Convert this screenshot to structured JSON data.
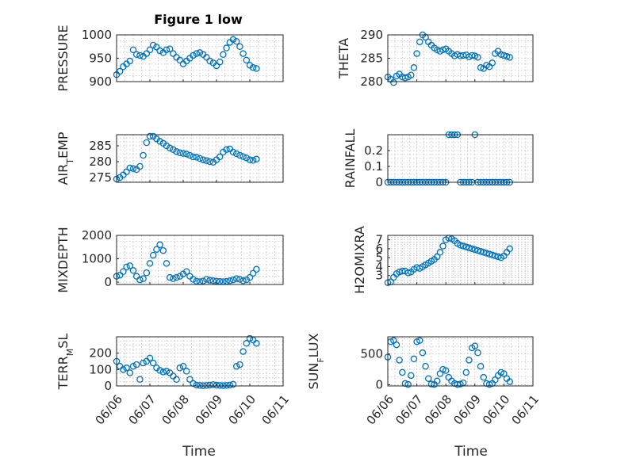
{
  "figure_title": "Figure 1 low",
  "xlabel": "Time",
  "colors": {
    "marker": "#0072BD",
    "axis": "#262626",
    "grid": "#bfbfbf"
  },
  "chart_data": [
    {
      "type": "scatter",
      "name": "pressure",
      "ylabel": "PRESSURE",
      "title": "Figure 1 low",
      "ylim": [
        900,
        1000
      ],
      "yticks": [
        900,
        950,
        1000
      ],
      "yticklabels": [
        "900",
        "950",
        "1000"
      ],
      "xlim": [
        "06/06",
        "06/11"
      ],
      "xticks": [],
      "xticklabels": [],
      "grid": true,
      "marker": "o",
      "x": [
        0.0,
        0.1,
        0.2,
        0.3,
        0.4,
        0.5,
        0.6,
        0.7,
        0.8,
        0.9,
        1.0,
        1.1,
        1.2,
        1.3,
        1.4,
        1.5,
        1.6,
        1.7,
        1.8,
        1.9,
        2.0,
        2.1,
        2.2,
        2.3,
        2.4,
        2.5,
        2.6,
        2.7,
        2.8,
        2.9,
        3.0,
        3.1,
        3.2,
        3.3,
        3.4,
        3.5,
        3.6,
        3.7,
        3.8,
        3.9,
        4.0,
        4.1,
        4.2
      ],
      "y": [
        915,
        922,
        932,
        938,
        944,
        968,
        958,
        956,
        954,
        960,
        968,
        978,
        974,
        966,
        962,
        968,
        970,
        960,
        952,
        946,
        938,
        944,
        950,
        956,
        960,
        962,
        958,
        952,
        944,
        940,
        934,
        942,
        958,
        972,
        984,
        990,
        986,
        975,
        960,
        946,
        935,
        930,
        928
      ]
    },
    {
      "type": "scatter",
      "name": "theta",
      "ylabel": "THETA",
      "ylim": [
        280,
        290
      ],
      "yticks": [
        280,
        285,
        290
      ],
      "yticklabels": [
        "280",
        "285",
        "290"
      ],
      "xlim": [
        "06/06",
        "06/11"
      ],
      "xticks": [],
      "xticklabels": [],
      "grid": true,
      "marker": "o",
      "x": [
        0.0,
        0.1,
        0.2,
        0.3,
        0.4,
        0.5,
        0.6,
        0.7,
        0.8,
        0.9,
        1.0,
        1.1,
        1.2,
        1.3,
        1.4,
        1.5,
        1.6,
        1.7,
        1.8,
        1.9,
        2.0,
        2.1,
        2.2,
        2.3,
        2.4,
        2.5,
        2.6,
        2.7,
        2.8,
        2.9,
        3.0,
        3.1,
        3.2,
        3.3,
        3.4,
        3.5,
        3.6,
        3.7,
        3.8,
        3.9,
        4.0,
        4.1,
        4.2
      ],
      "y": [
        281,
        280.5,
        279.8,
        281.2,
        281.6,
        281,
        280.8,
        281,
        281.4,
        283,
        286,
        288.5,
        290,
        289.5,
        288.5,
        287.8,
        287.2,
        286.8,
        286.5,
        286.8,
        287,
        286.5,
        286,
        285.5,
        285.8,
        285.5,
        285.6,
        285.7,
        285.3,
        285.6,
        285.5,
        285.2,
        283,
        282.8,
        283.5,
        283.2,
        284,
        286,
        286.5,
        285.8,
        285.6,
        285.4,
        285.2
      ]
    },
    {
      "type": "scatter",
      "name": "air_temp",
      "ylabel": "AIR_TEMP",
      "ylim": [
        273.5,
        288.5
      ],
      "yticks": [
        275,
        280,
        285
      ],
      "yticklabels": [
        "275",
        "280",
        "285"
      ],
      "xlim": [
        "06/06",
        "06/11"
      ],
      "xticks": [],
      "xticklabels": [],
      "grid": true,
      "marker": "o",
      "x": [
        0.0,
        0.1,
        0.2,
        0.3,
        0.4,
        0.5,
        0.6,
        0.7,
        0.8,
        0.9,
        1.0,
        1.1,
        1.2,
        1.3,
        1.4,
        1.5,
        1.6,
        1.7,
        1.8,
        1.9,
        2.0,
        2.1,
        2.2,
        2.3,
        2.4,
        2.5,
        2.6,
        2.7,
        2.8,
        2.9,
        3.0,
        3.1,
        3.2,
        3.3,
        3.4,
        3.5,
        3.6,
        3.7,
        3.8,
        3.9,
        4.0,
        4.1,
        4.2
      ],
      "y": [
        274.5,
        275,
        275.8,
        276.8,
        278,
        277.8,
        277.5,
        278.5,
        282,
        286,
        288,
        288,
        287.2,
        286.4,
        285.8,
        285,
        284.3,
        283.8,
        283.2,
        282.8,
        282.6,
        282.4,
        282,
        281.5,
        281.4,
        281,
        280.6,
        280.3,
        280,
        279.8,
        280.6,
        281.5,
        283,
        283.8,
        284,
        283,
        282.5,
        282,
        281.6,
        281.2,
        280.6,
        280.4,
        280.8
      ]
    },
    {
      "type": "scatter",
      "name": "rainfall",
      "ylabel": "RAINFALL",
      "ylim": [
        0,
        0.3
      ],
      "yticks": [
        0,
        0.1,
        0.2
      ],
      "yticklabels": [
        "0",
        "0.1",
        "0.2"
      ],
      "xlim": [
        "06/06",
        "06/11"
      ],
      "xticks": [],
      "xticklabels": [],
      "grid": true,
      "marker": "o",
      "x": [
        0.0,
        0.1,
        0.2,
        0.3,
        0.4,
        0.5,
        0.6,
        0.7,
        0.8,
        0.9,
        1.0,
        1.1,
        1.2,
        1.3,
        1.4,
        1.5,
        1.6,
        1.7,
        1.8,
        1.9,
        2.0,
        2.1,
        2.2,
        2.3,
        2.4,
        2.5,
        2.6,
        2.7,
        2.8,
        2.9,
        3.0,
        3.1,
        3.2,
        3.3,
        3.4,
        3.5,
        3.6,
        3.7,
        3.8,
        3.9,
        4.0,
        4.1,
        4.2
      ],
      "y": [
        0,
        0,
        0,
        0,
        0,
        0,
        0,
        0,
        0,
        0,
        0,
        0,
        0,
        0,
        0,
        0,
        0,
        0,
        0,
        0,
        0,
        0.3,
        0.3,
        0.3,
        0.3,
        0,
        0,
        0,
        0,
        0,
        0.3,
        0,
        0,
        0,
        0,
        0,
        0,
        0,
        0,
        0,
        0,
        0,
        0
      ]
    },
    {
      "type": "scatter",
      "name": "mixdepth",
      "ylabel": "MIXDEPTH",
      "ylim": [
        -100,
        2000
      ],
      "yticks": [
        0,
        1000,
        2000
      ],
      "yticklabels": [
        "0",
        "1000",
        "2000"
      ],
      "xlim": [
        "06/06",
        "06/11"
      ],
      "xticks": [],
      "xticklabels": [],
      "grid": true,
      "marker": "o",
      "x": [
        0.0,
        0.1,
        0.2,
        0.3,
        0.4,
        0.5,
        0.6,
        0.7,
        0.8,
        0.9,
        1.0,
        1.1,
        1.2,
        1.3,
        1.4,
        1.5,
        1.6,
        1.7,
        1.8,
        1.9,
        2.0,
        2.1,
        2.2,
        2.3,
        2.4,
        2.5,
        2.6,
        2.7,
        2.8,
        2.9,
        3.0,
        3.1,
        3.2,
        3.3,
        3.4,
        3.5,
        3.6,
        3.7,
        3.8,
        3.9,
        4.0,
        4.1,
        4.2
      ],
      "y": [
        250,
        300,
        450,
        650,
        700,
        500,
        250,
        100,
        150,
        400,
        800,
        1150,
        1400,
        1600,
        1350,
        800,
        200,
        150,
        200,
        250,
        350,
        450,
        250,
        120,
        40,
        20,
        50,
        120,
        80,
        60,
        40,
        30,
        20,
        30,
        60,
        100,
        150,
        120,
        60,
        100,
        200,
        380,
        550
      ]
    },
    {
      "type": "scatter",
      "name": "h2omixra",
      "ylabel": "H2OMIXRA",
      "ylim": [
        2,
        7.5
      ],
      "yticks": [
        3,
        4,
        5,
        6,
        7
      ],
      "yticklabels": [
        "3",
        "4",
        "5",
        "6",
        "7"
      ],
      "xlim": [
        "06/06",
        "06/11"
      ],
      "xticks": [],
      "xticklabels": [],
      "grid": true,
      "marker": "o",
      "x": [
        0.0,
        0.1,
        0.2,
        0.3,
        0.4,
        0.5,
        0.6,
        0.7,
        0.8,
        0.9,
        1.0,
        1.1,
        1.2,
        1.3,
        1.4,
        1.5,
        1.6,
        1.7,
        1.8,
        1.9,
        2.0,
        2.1,
        2.2,
        2.3,
        2.4,
        2.5,
        2.6,
        2.7,
        2.8,
        2.9,
        3.0,
        3.1,
        3.2,
        3.3,
        3.4,
        3.5,
        3.6,
        3.7,
        3.8,
        3.9,
        4.0,
        4.1,
        4.2
      ],
      "y": [
        2.2,
        2.3,
        2.8,
        3.2,
        3.4,
        3.5,
        3.5,
        3.3,
        3.4,
        3.7,
        3.9,
        3.8,
        4.0,
        4.2,
        4.4,
        4.6,
        4.8,
        5.1,
        5.6,
        6.3,
        7.0,
        7.2,
        7.1,
        6.9,
        6.6,
        6.4,
        6.3,
        6.2,
        6.1,
        6.0,
        5.9,
        5.8,
        5.7,
        5.6,
        5.5,
        5.4,
        5.3,
        5.2,
        5.1,
        5.0,
        5.2,
        5.6,
        6.0
      ]
    },
    {
      "type": "scatter",
      "name": "terr_msl",
      "ylabel": "TERR_MSL",
      "ylim": [
        0,
        300
      ],
      "yticks": [
        0,
        100,
        200
      ],
      "yticklabels": [
        "0",
        "100",
        "200"
      ],
      "xlim": [
        "06/06",
        "06/11"
      ],
      "xticks": [
        0,
        1,
        2,
        3,
        4,
        5
      ],
      "xticklabels": [
        "06/06",
        "06/07",
        "06/08",
        "06/09",
        "06/10",
        "06/11"
      ],
      "grid": true,
      "marker": "o",
      "x": [
        0.0,
        0.1,
        0.2,
        0.3,
        0.4,
        0.5,
        0.6,
        0.7,
        0.8,
        0.9,
        1.0,
        1.1,
        1.2,
        1.3,
        1.4,
        1.5,
        1.6,
        1.7,
        1.8,
        1.9,
        2.0,
        2.1,
        2.2,
        2.3,
        2.4,
        2.5,
        2.6,
        2.7,
        2.8,
        2.9,
        3.0,
        3.1,
        3.2,
        3.3,
        3.4,
        3.5,
        3.6,
        3.7,
        3.8,
        3.9,
        4.0,
        4.1,
        4.2
      ],
      "y": [
        150,
        120,
        100,
        110,
        80,
        120,
        130,
        40,
        140,
        150,
        170,
        140,
        110,
        95,
        85,
        90,
        80,
        60,
        40,
        110,
        120,
        90,
        40,
        15,
        5,
        3,
        2,
        3,
        5,
        8,
        4,
        3,
        2,
        3,
        5,
        10,
        120,
        130,
        210,
        260,
        290,
        280,
        260
      ]
    },
    {
      "type": "scatter",
      "name": "sun_flux",
      "ylabel": "SUN_FLUX",
      "ylim": [
        -20,
        780
      ],
      "yticks": [
        0,
        500
      ],
      "yticklabels": [
        "0",
        "500"
      ],
      "xlim": [
        "06/06",
        "06/11"
      ],
      "xticks": [
        0,
        1,
        2,
        3,
        4,
        5
      ],
      "xticklabels": [
        "06/06",
        "06/07",
        "06/08",
        "06/09",
        "06/10",
        "06/11"
      ],
      "grid": true,
      "marker": "o",
      "x": [
        0.0,
        0.1,
        0.2,
        0.3,
        0.4,
        0.5,
        0.6,
        0.7,
        0.8,
        0.9,
        1.0,
        1.1,
        1.2,
        1.3,
        1.4,
        1.5,
        1.6,
        1.7,
        1.8,
        1.9,
        2.0,
        2.1,
        2.2,
        2.3,
        2.4,
        2.5,
        2.6,
        2.7,
        2.8,
        2.9,
        3.0,
        3.1,
        3.2,
        3.3,
        3.4,
        3.5,
        3.6,
        3.7,
        3.8,
        3.9,
        4.0,
        4.1,
        4.2
      ],
      "y": [
        450,
        700,
        720,
        650,
        400,
        200,
        20,
        5,
        150,
        420,
        700,
        720,
        520,
        300,
        100,
        10,
        5,
        60,
        180,
        250,
        230,
        120,
        60,
        20,
        5,
        10,
        30,
        200,
        400,
        600,
        630,
        520,
        300,
        120,
        20,
        5,
        20,
        80,
        150,
        200,
        180,
        100,
        50
      ]
    }
  ]
}
